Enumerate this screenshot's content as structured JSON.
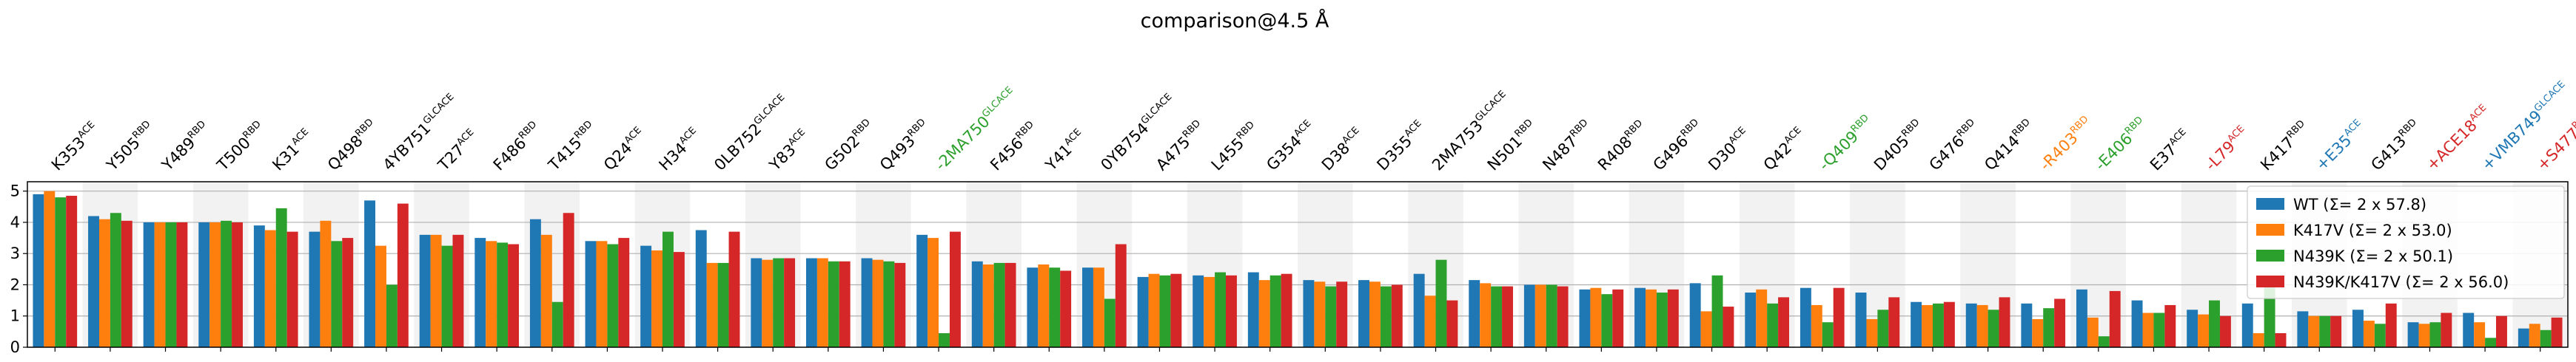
{
  "chart_data": {
    "type": "bar",
    "title": "comparison@4.5 Å",
    "xlabel": "",
    "ylabel": "",
    "ylim": [
      0,
      5.3
    ],
    "yticks": [
      0,
      1,
      2,
      3,
      4,
      5
    ],
    "grid": "horizontal",
    "shaded_alternate_columns": true,
    "legend_position": "right",
    "colors": {
      "WT": "#1f77b4",
      "K417V": "#ff7f0e",
      "N439K": "#2ca02c",
      "N439K/K417V": "#d62728",
      "label_black": "#000000",
      "label_green": "#2ca02c",
      "label_orange": "#ff7f0e",
      "label_red": "#d62728",
      "label_blue": "#1f77b4",
      "band": "#f2f2f2"
    },
    "categories": [
      {
        "base": "K353",
        "sup": "ACE",
        "color": "black"
      },
      {
        "base": "Y505",
        "sup": "RBD",
        "color": "black"
      },
      {
        "base": "Y489",
        "sup": "RBD",
        "color": "black"
      },
      {
        "base": "T500",
        "sup": "RBD",
        "color": "black"
      },
      {
        "base": "K31",
        "sup": "ACE",
        "color": "black"
      },
      {
        "base": "Q498",
        "sup": "RBD",
        "color": "black"
      },
      {
        "base": "4YB751",
        "sup": "GLCACE",
        "color": "black"
      },
      {
        "base": "T27",
        "sup": "ACE",
        "color": "black"
      },
      {
        "base": "F486",
        "sup": "RBD",
        "color": "black"
      },
      {
        "base": "T415",
        "sup": "RBD",
        "color": "black"
      },
      {
        "base": "Q24",
        "sup": "ACE",
        "color": "black"
      },
      {
        "base": "H34",
        "sup": "ACE",
        "color": "black"
      },
      {
        "base": "0LB752",
        "sup": "GLCACE",
        "color": "black"
      },
      {
        "base": "Y83",
        "sup": "ACE",
        "color": "black"
      },
      {
        "base": "G502",
        "sup": "RBD",
        "color": "black"
      },
      {
        "base": "Q493",
        "sup": "RBD",
        "color": "black"
      },
      {
        "base": "-2MA750",
        "sup": "GLCACE",
        "color": "green"
      },
      {
        "base": "F456",
        "sup": "RBD",
        "color": "black"
      },
      {
        "base": "Y41",
        "sup": "ACE",
        "color": "black"
      },
      {
        "base": "0YB754",
        "sup": "GLCACE",
        "color": "black"
      },
      {
        "base": "A475",
        "sup": "RBD",
        "color": "black"
      },
      {
        "base": "L455",
        "sup": "RBD",
        "color": "black"
      },
      {
        "base": "G354",
        "sup": "ACE",
        "color": "black"
      },
      {
        "base": "D38",
        "sup": "ACE",
        "color": "black"
      },
      {
        "base": "D355",
        "sup": "ACE",
        "color": "black"
      },
      {
        "base": "2MA753",
        "sup": "GLCACE",
        "color": "black"
      },
      {
        "base": "N501",
        "sup": "RBD",
        "color": "black"
      },
      {
        "base": "N487",
        "sup": "RBD",
        "color": "black"
      },
      {
        "base": "R408",
        "sup": "RBD",
        "color": "black"
      },
      {
        "base": "G496",
        "sup": "RBD",
        "color": "black"
      },
      {
        "base": "D30",
        "sup": "ACE",
        "color": "black"
      },
      {
        "base": "Q42",
        "sup": "ACE",
        "color": "black"
      },
      {
        "base": "-Q409",
        "sup": "RBD",
        "color": "green"
      },
      {
        "base": "D405",
        "sup": "RBD",
        "color": "black"
      },
      {
        "base": "G476",
        "sup": "RBD",
        "color": "black"
      },
      {
        "base": "Q414",
        "sup": "RBD",
        "color": "black"
      },
      {
        "base": "-R403",
        "sup": "RBD",
        "color": "orange"
      },
      {
        "base": "-E406",
        "sup": "RBD",
        "color": "green"
      },
      {
        "base": "E37",
        "sup": "ACE",
        "color": "black"
      },
      {
        "base": "-L79",
        "sup": "ACE",
        "color": "red"
      },
      {
        "base": "K417",
        "sup": "RBD",
        "color": "black"
      },
      {
        "base": "+E35",
        "sup": "ACE",
        "color": "blue"
      },
      {
        "base": "G413",
        "sup": "RBD",
        "color": "black"
      },
      {
        "base": "+ACE18",
        "sup": "ACE",
        "color": "red"
      },
      {
        "base": "+VMB749",
        "sup": "GLCACE",
        "color": "blue"
      },
      {
        "base": "+S477",
        "sup": "RBD",
        "color": "red"
      }
    ],
    "series": [
      {
        "name": "WT (Σ= 2 x 57.8)",
        "color_key": "WT",
        "values": [
          4.9,
          4.2,
          4.0,
          4.0,
          3.9,
          3.7,
          4.7,
          3.6,
          3.5,
          4.1,
          3.4,
          3.25,
          3.75,
          2.85,
          2.85,
          2.85,
          3.6,
          2.75,
          2.55,
          2.55,
          2.25,
          2.3,
          2.4,
          2.15,
          2.15,
          2.35,
          2.15,
          2.0,
          1.85,
          1.9,
          2.05,
          1.75,
          1.9,
          1.75,
          1.45,
          1.4,
          1.4,
          1.85,
          1.5,
          1.2,
          1.4,
          1.15,
          1.2,
          0.8,
          1.1,
          0.6
        ]
      },
      {
        "name": "K417V (Σ= 2 x 53.0)",
        "color_key": "K417V",
        "values": [
          5.0,
          4.1,
          4.0,
          4.0,
          3.75,
          4.05,
          3.25,
          3.6,
          3.4,
          3.6,
          3.4,
          3.1,
          2.7,
          2.8,
          2.85,
          2.8,
          3.5,
          2.65,
          2.65,
          2.55,
          2.35,
          2.25,
          2.15,
          2.1,
          2.1,
          1.65,
          2.05,
          2.0,
          1.9,
          1.85,
          1.15,
          1.85,
          1.35,
          0.9,
          1.35,
          1.35,
          0.9,
          0.95,
          1.1,
          1.05,
          0.45,
          1.0,
          0.85,
          0.75,
          0.8,
          0.75
        ]
      },
      {
        "name": "N439K (Σ= 2 x 50.1)",
        "color_key": "N439K",
        "values": [
          4.8,
          4.3,
          4.0,
          4.05,
          4.45,
          3.4,
          2.0,
          3.25,
          3.35,
          1.45,
          3.3,
          3.7,
          2.7,
          2.85,
          2.75,
          2.75,
          0.45,
          2.7,
          2.55,
          1.55,
          2.3,
          2.4,
          2.3,
          1.95,
          1.95,
          2.8,
          1.95,
          2.0,
          1.7,
          1.75,
          2.3,
          1.4,
          0.8,
          1.2,
          1.4,
          1.2,
          1.25,
          0.35,
          1.1,
          1.5,
          2.05,
          1.0,
          0.75,
          0.8,
          0.3,
          0.55
        ]
      },
      {
        "name": "N439K/K417V (Σ= 2 x 56.0)",
        "color_key": "N439K/K417V",
        "values": [
          4.85,
          4.05,
          4.0,
          4.0,
          3.7,
          3.5,
          4.6,
          3.6,
          3.3,
          4.3,
          3.5,
          3.05,
          3.7,
          2.85,
          2.75,
          2.7,
          3.7,
          2.7,
          2.45,
          3.3,
          2.35,
          2.3,
          2.35,
          2.1,
          2.0,
          1.5,
          1.95,
          1.95,
          1.85,
          1.85,
          1.3,
          1.6,
          1.9,
          1.6,
          1.45,
          1.6,
          1.55,
          1.8,
          1.35,
          1.0,
          0.45,
          1.0,
          1.4,
          1.1,
          1.0,
          0.95
        ]
      }
    ]
  }
}
